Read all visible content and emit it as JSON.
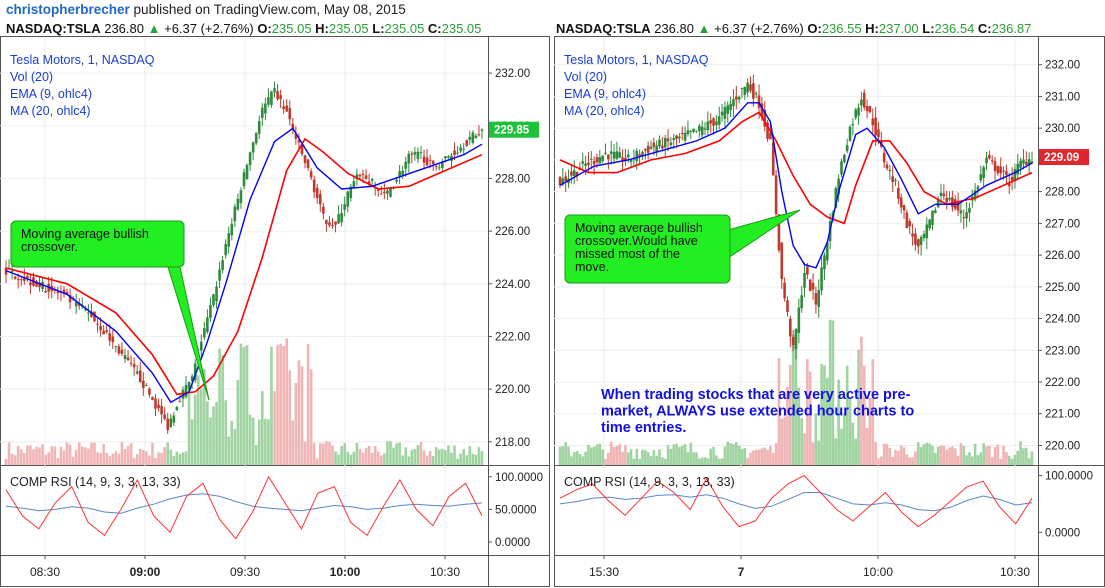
{
  "header": {
    "author": "christopherbrecher",
    "published_text": " published on TradingView.com, May 08, 2015"
  },
  "colors": {
    "up": "#2e8b3d",
    "down": "#c0392b",
    "ema": "#0000ff",
    "ma": "#ff0000",
    "rsi": "#ff3333",
    "rsi_signal": "#5b86c9",
    "vol_up": "#9fd3a0",
    "vol_down": "#f0b4b4",
    "callout": "#22ee22",
    "annotation": "#1010e0",
    "label_blue": "#1a3fcf"
  },
  "panels": [
    {
      "quote": {
        "symbol": "NASDAQ:TSLA",
        "price": "236.80",
        "change": "+6.37 (+2.76%)",
        "o_label": "O:",
        "o": "235.05",
        "h_label": "H:",
        "h": "235.05",
        "l_label": "L:",
        "l": "235.05",
        "c_label": "C:",
        "c": "235.05"
      },
      "legend": [
        "Tesla Motors, 1, NASDAQ",
        "Vol (20)",
        "EMA (9, ohlc4)",
        "MA (20, ohlc4)"
      ],
      "price_axis": [
        "232.00",
        "230.00",
        "228.00",
        "226.00",
        "224.00",
        "222.00",
        "220.00",
        "218.00"
      ],
      "last_price": "229.85",
      "rsi_label": "COMP RSI (14, 9, 3, 3, 13, 33)",
      "rsi_axis": [
        "100.0000",
        "50.0000",
        "0.0000"
      ],
      "time_axis": [
        "08:30",
        "09:00",
        "09:30",
        "10:00",
        "10:30"
      ],
      "time_axis_bold": [
        false,
        true,
        false,
        true,
        false
      ],
      "callout": [
        "Moving average bullish",
        "crossover."
      ],
      "annotation": []
    },
    {
      "quote": {
        "symbol": "NASDAQ:TSLA",
        "price": "236.80",
        "change": "+6.37 (+2.76%)",
        "o_label": "O:",
        "o": "236.55",
        "h_label": "H:",
        "h": "237.00",
        "l_label": "L:",
        "l": "236.54",
        "c_label": "C:",
        "c": "236.87"
      },
      "legend": [
        "Tesla Motors, 1, NASDAQ",
        "Vol (20)",
        "EMA (9, ohlc4)",
        "MA (20, ohlc4)"
      ],
      "price_axis": [
        "232.00",
        "231.00",
        "230.00",
        "229.00",
        "228.00",
        "227.00",
        "226.00",
        "225.00",
        "224.00",
        "223.00",
        "222.00",
        "221.00",
        "220.00"
      ],
      "last_price": "229.09",
      "rsi_label": "COMP RSI (14, 9, 3, 3, 13, 33)",
      "rsi_axis": [
        "100.0000",
        "0.0000"
      ],
      "time_axis": [
        "15:30",
        "7",
        "10:00",
        "10:30"
      ],
      "time_axis_bold": [
        false,
        true,
        false,
        false
      ],
      "callout": [
        "Moving average bullish",
        "crossover.Would have",
        "missed most of the",
        "move."
      ],
      "annotation": [
        "When trading stocks that are very active pre-",
        "market, ALWAYS use extended hour charts to",
        "time entries."
      ]
    }
  ],
  "chart_data": [
    {
      "type": "candlestick",
      "title": "Tesla Motors, 1, NASDAQ",
      "symbol": "NASDAQ:TSLA",
      "interval": "1 minute",
      "x_ticks": [
        "08:30",
        "09:00",
        "09:30",
        "10:00",
        "10:30"
      ],
      "ylim": [
        217.5,
        232.8
      ],
      "y_ticks": [
        218,
        220,
        222,
        224,
        226,
        228,
        230,
        232
      ],
      "last_price": 229.85,
      "close_path": [
        {
          "t": 0,
          "v": 224.5
        },
        {
          "t": 10,
          "v": 224.0
        },
        {
          "t": 18,
          "v": 223.6
        },
        {
          "t": 28,
          "v": 222.8
        },
        {
          "t": 36,
          "v": 221.6
        },
        {
          "t": 44,
          "v": 220.4
        },
        {
          "t": 48,
          "v": 219.6
        },
        {
          "t": 53,
          "v": 218.6
        },
        {
          "t": 57,
          "v": 219.7
        },
        {
          "t": 61,
          "v": 220.4
        },
        {
          "t": 64,
          "v": 221.8
        },
        {
          "t": 68,
          "v": 223.5
        },
        {
          "t": 72,
          "v": 225.5
        },
        {
          "t": 76,
          "v": 227.2
        },
        {
          "t": 80,
          "v": 229.0
        },
        {
          "t": 84,
          "v": 230.6
        },
        {
          "t": 88,
          "v": 231.3
        },
        {
          "t": 92,
          "v": 230.5
        },
        {
          "t": 96,
          "v": 229.2
        },
        {
          "t": 100,
          "v": 228.0
        },
        {
          "t": 104,
          "v": 226.5
        },
        {
          "t": 108,
          "v": 226.2
        },
        {
          "t": 112,
          "v": 227.4
        },
        {
          "t": 116,
          "v": 228.2
        },
        {
          "t": 120,
          "v": 227.8
        },
        {
          "t": 124,
          "v": 227.3
        },
        {
          "t": 128,
          "v": 228.0
        },
        {
          "t": 132,
          "v": 228.8
        },
        {
          "t": 136,
          "v": 228.9
        },
        {
          "t": 140,
          "v": 228.4
        },
        {
          "t": 146,
          "v": 228.9
        },
        {
          "t": 152,
          "v": 229.5
        },
        {
          "t": 156,
          "v": 229.85
        }
      ],
      "ema": [
        {
          "t": 0,
          "v": 224.5
        },
        {
          "t": 20,
          "v": 223.6
        },
        {
          "t": 36,
          "v": 222.2
        },
        {
          "t": 48,
          "v": 220.6
        },
        {
          "t": 54,
          "v": 219.5
        },
        {
          "t": 60,
          "v": 219.9
        },
        {
          "t": 66,
          "v": 221.8
        },
        {
          "t": 72,
          "v": 224.0
        },
        {
          "t": 80,
          "v": 227.2
        },
        {
          "t": 88,
          "v": 229.4
        },
        {
          "t": 94,
          "v": 229.9
        },
        {
          "t": 102,
          "v": 228.4
        },
        {
          "t": 110,
          "v": 227.6
        },
        {
          "t": 120,
          "v": 227.7
        },
        {
          "t": 130,
          "v": 228.1
        },
        {
          "t": 140,
          "v": 228.5
        },
        {
          "t": 150,
          "v": 228.9
        },
        {
          "t": 156,
          "v": 229.3
        }
      ],
      "ma": [
        {
          "t": 0,
          "v": 224.6
        },
        {
          "t": 20,
          "v": 224.0
        },
        {
          "t": 36,
          "v": 222.9
        },
        {
          "t": 48,
          "v": 221.3
        },
        {
          "t": 56,
          "v": 219.8
        },
        {
          "t": 62,
          "v": 219.9
        },
        {
          "t": 68,
          "v": 220.5
        },
        {
          "t": 76,
          "v": 222.2
        },
        {
          "t": 84,
          "v": 225.0
        },
        {
          "t": 92,
          "v": 228.3
        },
        {
          "t": 98,
          "v": 229.5
        },
        {
          "t": 104,
          "v": 229.0
        },
        {
          "t": 112,
          "v": 228.2
        },
        {
          "t": 122,
          "v": 227.6
        },
        {
          "t": 132,
          "v": 227.7
        },
        {
          "t": 144,
          "v": 228.3
        },
        {
          "t": 156,
          "v": 228.9
        }
      ],
      "rsi": [
        80,
        40,
        20,
        60,
        85,
        30,
        10,
        50,
        95,
        40,
        15,
        70,
        90,
        35,
        5,
        45,
        100,
        60,
        20,
        75,
        85,
        30,
        10,
        55,
        95,
        50,
        25,
        70,
        90,
        40
      ],
      "rsi_signal": [
        55,
        52,
        48,
        50,
        54,
        52,
        46,
        44,
        52,
        58,
        66,
        72,
        74,
        70,
        62,
        55,
        52,
        50,
        48,
        52,
        56,
        54,
        50,
        52,
        56,
        58,
        56,
        55,
        58,
        60
      ],
      "rsi_ylim": [
        -20,
        115
      ],
      "rsi_ticks": [
        100,
        50,
        0
      ],
      "callout": "Moving average bullish crossover."
    },
    {
      "type": "candlestick",
      "title": "Tesla Motors, 1, NASDAQ",
      "symbol": "NASDAQ:TSLA",
      "interval": "1 minute (extended hours)",
      "x_ticks": [
        "15:30",
        "7",
        "10:00",
        "10:30"
      ],
      "ylim": [
        219.7,
        232.4
      ],
      "y_ticks": [
        220,
        221,
        222,
        223,
        224,
        225,
        226,
        227,
        228,
        229,
        230,
        231,
        232
      ],
      "last_price": 229.09,
      "close_path": [
        {
          "t": 0,
          "v": 228.3
        },
        {
          "t": 8,
          "v": 228.8
        },
        {
          "t": 16,
          "v": 229.2
        },
        {
          "t": 24,
          "v": 229.0
        },
        {
          "t": 32,
          "v": 229.4
        },
        {
          "t": 40,
          "v": 229.6
        },
        {
          "t": 48,
          "v": 229.9
        },
        {
          "t": 56,
          "v": 230.3
        },
        {
          "t": 62,
          "v": 231.0
        },
        {
          "t": 66,
          "v": 231.4
        },
        {
          "t": 70,
          "v": 230.8
        },
        {
          "t": 74,
          "v": 229.5
        },
        {
          "t": 78,
          "v": 225.2
        },
        {
          "t": 82,
          "v": 223.0
        },
        {
          "t": 86,
          "v": 225.5
        },
        {
          "t": 90,
          "v": 224.5
        },
        {
          "t": 94,
          "v": 226.5
        },
        {
          "t": 98,
          "v": 228.5
        },
        {
          "t": 102,
          "v": 230.0
        },
        {
          "t": 106,
          "v": 231.0
        },
        {
          "t": 110,
          "v": 230.2
        },
        {
          "t": 114,
          "v": 229.0
        },
        {
          "t": 118,
          "v": 228.2
        },
        {
          "t": 122,
          "v": 227.0
        },
        {
          "t": 126,
          "v": 226.2
        },
        {
          "t": 130,
          "v": 227.0
        },
        {
          "t": 134,
          "v": 228.0
        },
        {
          "t": 138,
          "v": 227.6
        },
        {
          "t": 142,
          "v": 227.2
        },
        {
          "t": 146,
          "v": 228.0
        },
        {
          "t": 150,
          "v": 229.0
        },
        {
          "t": 154,
          "v": 228.7
        },
        {
          "t": 158,
          "v": 228.3
        },
        {
          "t": 162,
          "v": 228.9
        },
        {
          "t": 166,
          "v": 229.09
        }
      ],
      "ema": [
        {
          "t": 0,
          "v": 228.2
        },
        {
          "t": 12,
          "v": 228.8
        },
        {
          "t": 24,
          "v": 229.0
        },
        {
          "t": 36,
          "v": 229.3
        },
        {
          "t": 48,
          "v": 229.6
        },
        {
          "t": 58,
          "v": 230.0
        },
        {
          "t": 66,
          "v": 230.8
        },
        {
          "t": 70,
          "v": 230.8
        },
        {
          "t": 74,
          "v": 230.2
        },
        {
          "t": 78,
          "v": 228.0
        },
        {
          "t": 82,
          "v": 226.3
        },
        {
          "t": 86,
          "v": 225.7
        },
        {
          "t": 90,
          "v": 225.6
        },
        {
          "t": 94,
          "v": 226.4
        },
        {
          "t": 98,
          "v": 228.0
        },
        {
          "t": 104,
          "v": 229.8
        },
        {
          "t": 108,
          "v": 230.0
        },
        {
          "t": 114,
          "v": 229.4
        },
        {
          "t": 120,
          "v": 228.4
        },
        {
          "t": 126,
          "v": 227.3
        },
        {
          "t": 132,
          "v": 227.6
        },
        {
          "t": 140,
          "v": 227.6
        },
        {
          "t": 150,
          "v": 228.2
        },
        {
          "t": 160,
          "v": 228.6
        },
        {
          "t": 166,
          "v": 228.9
        }
      ],
      "ma": [
        {
          "t": 0,
          "v": 229.0
        },
        {
          "t": 10,
          "v": 228.6
        },
        {
          "t": 20,
          "v": 228.6
        },
        {
          "t": 32,
          "v": 229.0
        },
        {
          "t": 44,
          "v": 229.2
        },
        {
          "t": 56,
          "v": 229.6
        },
        {
          "t": 64,
          "v": 230.2
        },
        {
          "t": 70,
          "v": 230.5
        },
        {
          "t": 76,
          "v": 229.6
        },
        {
          "t": 82,
          "v": 228.5
        },
        {
          "t": 88,
          "v": 227.6
        },
        {
          "t": 94,
          "v": 227.2
        },
        {
          "t": 100,
          "v": 227.0
        },
        {
          "t": 104,
          "v": 228.2
        },
        {
          "t": 110,
          "v": 229.6
        },
        {
          "t": 116,
          "v": 229.6
        },
        {
          "t": 122,
          "v": 228.9
        },
        {
          "t": 128,
          "v": 228.0
        },
        {
          "t": 136,
          "v": 227.6
        },
        {
          "t": 146,
          "v": 227.8
        },
        {
          "t": 156,
          "v": 228.2
        },
        {
          "t": 166,
          "v": 228.6
        }
      ],
      "rsi": [
        60,
        75,
        85,
        55,
        30,
        60,
        90,
        70,
        40,
        95,
        45,
        10,
        20,
        60,
        85,
        100,
        70,
        40,
        20,
        45,
        70,
        35,
        10,
        30,
        55,
        80,
        90,
        45,
        15,
        60
      ],
      "rsi_signal": [
        50,
        54,
        60,
        62,
        58,
        60,
        65,
        66,
        62,
        66,
        60,
        50,
        42,
        46,
        58,
        70,
        70,
        60,
        50,
        48,
        52,
        48,
        40,
        38,
        44,
        56,
        64,
        58,
        48,
        52
      ],
      "rsi_ylim": [
        -40,
        115
      ],
      "rsi_ticks": [
        100,
        0
      ],
      "callout": "Moving average bullish crossover.Would have missed most of the move.",
      "annotation": "When trading stocks that are very active pre-market, ALWAYS use extended hour charts to time entries."
    }
  ]
}
